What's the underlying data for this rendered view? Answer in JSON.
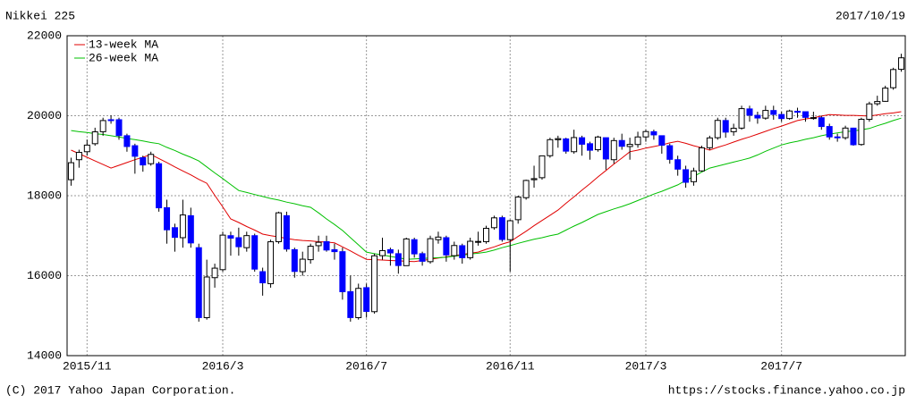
{
  "chart_data": {
    "type": "candlestick",
    "title": "Nikkei 225",
    "date": "2017/10/19",
    "footer_left": "(C) 2017 Yahoo Japan Corporation.",
    "footer_right": "https://stocks.finance.yahoo.co.jp",
    "categories": [
      null,
      null,
      "2015/11",
      null,
      null,
      null,
      null,
      null,
      null,
      null,
      null,
      null,
      null,
      null,
      null,
      null,
      null,
      null,
      null,
      "2016/3",
      null,
      null,
      null,
      null,
      null,
      null,
      null,
      null,
      null,
      null,
      null,
      null,
      null,
      null,
      null,
      null,
      null,
      "2016/7",
      null,
      null,
      null,
      null,
      null,
      null,
      null,
      null,
      null,
      null,
      null,
      null,
      null,
      null,
      null,
      null,
      null,
      "2016/11",
      null,
      null,
      null,
      null,
      null,
      null,
      null,
      null,
      null,
      null,
      null,
      null,
      null,
      null,
      null,
      null,
      "2017/3",
      null,
      null,
      null,
      null,
      null,
      null,
      null,
      null,
      null,
      null,
      null,
      null,
      null,
      null,
      null,
      null,
      "2017/7",
      null,
      null,
      null,
      null,
      null,
      null,
      null,
      null,
      null,
      null,
      null,
      null,
      null,
      null,
      null
    ],
    "open": [
      18400,
      18900,
      19100,
      19300,
      19600,
      19900,
      19900,
      19500,
      19250,
      18950,
      18800,
      18800,
      17700,
      17200,
      16950,
      17500,
      16700,
      14950,
      15950,
      16150,
      17000,
      16950,
      16700,
      17000,
      16100,
      15800,
      16850,
      17500,
      16650,
      16100,
      16400,
      16750,
      16850,
      16650,
      16600,
      15600,
      14950,
      15700,
      15100,
      16500,
      16650,
      16550,
      16250,
      16900,
      16550,
      16350,
      16900,
      16950,
      16500,
      16750,
      16450,
      16850,
      16850,
      17200,
      17450,
      16900,
      17400,
      17950,
      18400,
      18450,
      19000,
      19400,
      19420,
      19100,
      19450,
      19300,
      19150,
      19450,
      18900,
      19380,
      19230,
      19280,
      19470,
      19600,
      19500,
      19250,
      18900,
      18650,
      18350,
      18620,
      19200,
      19450,
      19880,
      19600,
      19690,
      20170,
      20010,
      19940,
      20130,
      20030,
      19930,
      20110,
      20100,
      19950,
      19950,
      19730,
      19470,
      19450,
      19690,
      19280,
      19910,
      20300,
      20360,
      20700,
      21160
    ],
    "high": [
      18950,
      19150,
      19400,
      19700,
      19950,
      20010,
      19950,
      19550,
      19300,
      19000,
      19100,
      18850,
      17900,
      17300,
      17900,
      17700,
      16800,
      16400,
      16300,
      17100,
      17100,
      17200,
      17100,
      17050,
      16200,
      16900,
      17600,
      17600,
      16700,
      16600,
      16800,
      17000,
      17000,
      16800,
      16700,
      16000,
      15800,
      15800,
      16550,
      16950,
      16700,
      16650,
      16950,
      16950,
      16600,
      17000,
      17100,
      17000,
      16850,
      16800,
      16950,
      17100,
      17250,
      17500,
      17500,
      17400,
      18000,
      18400,
      18750,
      19000,
      19450,
      19500,
      19450,
      19650,
      19500,
      19350,
      19500,
      19450,
      19450,
      19550,
      19450,
      19600,
      19650,
      19650,
      19500,
      19300,
      19000,
      18750,
      18700,
      19250,
      19500,
      19950,
      19950,
      19800,
      20250,
      20250,
      20100,
      20250,
      20250,
      20100,
      20150,
      20200,
      20100,
      20100,
      20000,
      19800,
      19550,
      19750,
      19700,
      19950,
      20350,
      20500,
      20750,
      21200,
      21550
    ],
    "low": [
      18250,
      18700,
      19000,
      19250,
      19500,
      19800,
      19400,
      19100,
      18550,
      18600,
      18750,
      17600,
      16800,
      16600,
      16700,
      16700,
      14850,
      14900,
      15700,
      16100,
      16500,
      16500,
      16600,
      16100,
      15500,
      15700,
      16800,
      16600,
      15950,
      16000,
      16300,
      16600,
      16600,
      16400,
      15400,
      14850,
      14900,
      14950,
      15050,
      16400,
      16250,
      16050,
      16250,
      16450,
      16250,
      16300,
      16800,
      16350,
      16400,
      16300,
      16400,
      16750,
      16800,
      17150,
      16850,
      16100,
      17300,
      17900,
      18200,
      18400,
      18950,
      19200,
      19050,
      19050,
      19000,
      18900,
      19100,
      18650,
      18800,
      19150,
      18900,
      19200,
      19350,
      19400,
      19050,
      18800,
      18500,
      18200,
      18250,
      18600,
      19150,
      19400,
      19450,
      19500,
      19650,
      19850,
      19800,
      19900,
      19900,
      19850,
      19900,
      19950,
      19850,
      19900,
      19650,
      19400,
      19350,
      19400,
      19250,
      19250,
      19850,
      20250,
      20350,
      20650,
      21100
    ],
    "close": [
      18825,
      19083,
      19265,
      19597,
      19879,
      19883,
      19504,
      19230,
      18986,
      18769,
      19033,
      17697,
      17147,
      16958,
      17518,
      16819,
      14952,
      15967,
      16188,
      17014,
      16938,
      16724,
      17002,
      16164,
      15821,
      16848,
      17572,
      16666,
      16106,
      16412,
      16736,
      16834,
      16642,
      16601,
      15599,
      14952,
      15682,
      15106,
      16497,
      16627,
      16569,
      16254,
      16919,
      16545,
      16360,
      16925,
      16965,
      16519,
      16754,
      16449,
      16860,
      16856,
      17184,
      17446,
      16905,
      17374,
      17967,
      18381,
      18426,
      18996,
      19401,
      19427,
      19114,
      19454,
      19287,
      19137,
      19467,
      18918,
      19378,
      19235,
      19283,
      19469,
      19604,
      19521,
      19262,
      18909,
      18664,
      18335,
      18620,
      19197,
      19445,
      19883,
      19590,
      19686,
      20177,
      20013,
      19943,
      20132,
      20033,
      19929,
      20118,
      20099,
      19959,
      19952,
      19730,
      19470,
      19452,
      19691,
      19274,
      19910,
      20296,
      20356,
      20690,
      21155,
      21448
    ],
    "up_color": "#ffffff",
    "down_color": "#0000ff",
    "series": [
      {
        "name": "13-week MA",
        "color": "#e00000",
        "values": [
          19140,
          19050,
          18960,
          18870,
          18780,
          18690,
          18760,
          18830,
          18900,
          18960,
          19030,
          18930,
          18830,
          18720,
          18620,
          18520,
          18410,
          18310,
          18010,
          17720,
          17420,
          17330,
          17230,
          17140,
          17040,
          17000,
          16970,
          16930,
          16900,
          16880,
          16870,
          16850,
          16840,
          16820,
          16720,
          16620,
          16510,
          16410,
          16400,
          16390,
          16380,
          16370,
          16360,
          16350,
          16380,
          16410,
          16440,
          16470,
          16500,
          16530,
          16560,
          16590,
          16660,
          16720,
          16790,
          16850,
          16980,
          17110,
          17250,
          17380,
          17510,
          17640,
          17810,
          17970,
          18140,
          18300,
          18470,
          18630,
          18790,
          18940,
          19100,
          19140,
          19190,
          19230,
          19270,
          19320,
          19360,
          19310,
          19250,
          19200,
          19140,
          19210,
          19270,
          19340,
          19410,
          19470,
          19540,
          19610,
          19680,
          19740,
          19810,
          19880,
          19920,
          19950,
          19990,
          20030,
          20020,
          20010,
          20010,
          20000,
          19990,
          20020,
          20050,
          20070,
          20100
        ]
      },
      {
        "name": "26-week MA",
        "color": "#00c000",
        "values": [
          19630,
          19600,
          19580,
          19550,
          19530,
          19500,
          19470,
          19430,
          19400,
          19370,
          19330,
          19300,
          19210,
          19130,
          19040,
          18960,
          18870,
          18720,
          18570,
          18430,
          18280,
          18130,
          18080,
          18030,
          17980,
          17930,
          17890,
          17840,
          17800,
          17750,
          17710,
          17570,
          17420,
          17280,
          17130,
          16950,
          16770,
          16590,
          16550,
          16520,
          16480,
          16450,
          16410,
          16420,
          16430,
          16440,
          16450,
          16460,
          16490,
          16510,
          16540,
          16560,
          16590,
          16640,
          16700,
          16750,
          16810,
          16860,
          16910,
          16950,
          17000,
          17040,
          17140,
          17240,
          17330,
          17430,
          17530,
          17600,
          17670,
          17730,
          17800,
          17880,
          17960,
          18040,
          18110,
          18190,
          18270,
          18380,
          18480,
          18590,
          18690,
          18740,
          18790,
          18840,
          18890,
          18940,
          19020,
          19110,
          19190,
          19270,
          19320,
          19360,
          19410,
          19450,
          19500,
          19540,
          19570,
          19600,
          19620,
          19650,
          19680,
          19750,
          19810,
          19880,
          19940
        ]
      }
    ],
    "ylim": [
      14000,
      22000
    ],
    "yticks": [
      14000,
      16000,
      18000,
      20000,
      22000
    ],
    "grid": true,
    "legend": "upper left"
  }
}
